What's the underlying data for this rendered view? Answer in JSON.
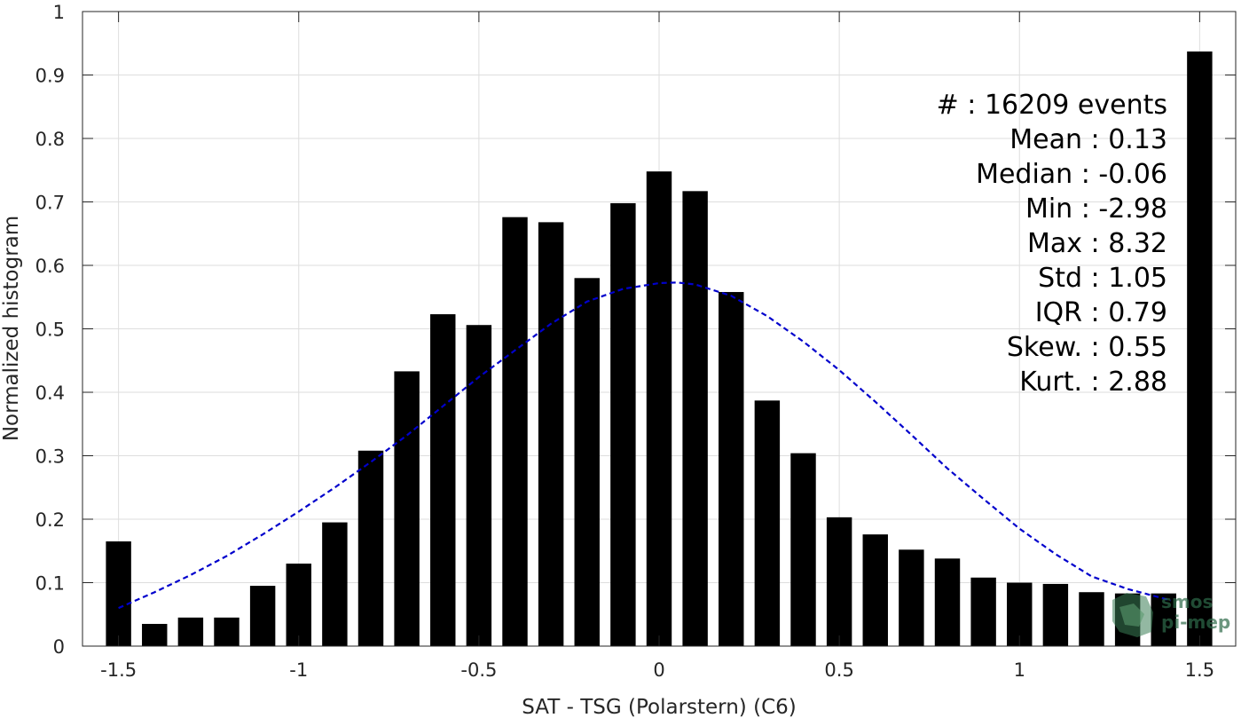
{
  "chart_data": {
    "type": "bar",
    "xlabel": "SAT - TSG (Polarstern) (C6)",
    "ylabel": "Normalized histogram",
    "xlim": [
      -1.6,
      1.6
    ],
    "ylim": [
      0,
      1
    ],
    "grid": true,
    "x_ticks": [
      -1.5,
      -1,
      -0.5,
      0,
      0.5,
      1,
      1.5
    ],
    "x_tick_labels": [
      "-1.5",
      "-1",
      "-0.5",
      "0",
      "0.5",
      "1",
      "1.5"
    ],
    "y_ticks": [
      0,
      0.1,
      0.2,
      0.3,
      0.4,
      0.5,
      0.6,
      0.7,
      0.8,
      0.9,
      1
    ],
    "y_tick_labels": [
      "0",
      "0.1",
      "0.2",
      "0.3",
      "0.4",
      "0.5",
      "0.6",
      "0.7",
      "0.8",
      "0.9",
      "1"
    ],
    "bar_width": 0.07,
    "bar_color": "#000000",
    "x": [
      -1.5,
      -1.4,
      -1.3,
      -1.2,
      -1.1,
      -1.0,
      -0.9,
      -0.8,
      -0.7,
      -0.6,
      -0.5,
      -0.4,
      -0.3,
      -0.2,
      -0.1,
      0.0,
      0.1,
      0.2,
      0.3,
      0.4,
      0.5,
      0.6,
      0.7,
      0.8,
      0.9,
      1.0,
      1.1,
      1.2,
      1.3,
      1.4,
      1.5
    ],
    "values": [
      0.165,
      0.035,
      0.045,
      0.045,
      0.095,
      0.13,
      0.195,
      0.308,
      0.433,
      0.523,
      0.506,
      0.676,
      0.668,
      0.58,
      0.698,
      0.748,
      0.717,
      0.558,
      0.387,
      0.304,
      0.203,
      0.176,
      0.152,
      0.138,
      0.108,
      0.1,
      0.098,
      0.085,
      0.083,
      0.083,
      0.937
    ],
    "fit_curve": {
      "style": "dashed",
      "color": "#0000cc",
      "x": [
        -1.5,
        -1.4,
        -1.3,
        -1.2,
        -1.1,
        -1.0,
        -0.9,
        -0.8,
        -0.7,
        -0.6,
        -0.5,
        -0.4,
        -0.3,
        -0.2,
        -0.1,
        0.0,
        0.05,
        0.1,
        0.2,
        0.3,
        0.4,
        0.5,
        0.6,
        0.7,
        0.8,
        0.9,
        1.0,
        1.1,
        1.2,
        1.3,
        1.42
      ],
      "y": [
        0.06,
        0.085,
        0.112,
        0.142,
        0.176,
        0.212,
        0.25,
        0.29,
        0.332,
        0.378,
        0.424,
        0.466,
        0.508,
        0.543,
        0.563,
        0.572,
        0.573,
        0.57,
        0.552,
        0.52,
        0.48,
        0.435,
        0.385,
        0.333,
        0.28,
        0.232,
        0.185,
        0.145,
        0.11,
        0.09,
        0.072
      ]
    },
    "annotations": [
      "#  : 16209 events",
      "Mean : 0.13",
      "Median : -0.06",
      "Min : -2.98",
      "Max : 8.32",
      "Std : 1.05",
      "IQR : 0.79",
      "Skew. : 0.55",
      "Kurt. : 2.88"
    ]
  },
  "logo": {
    "line1": "smos",
    "line2": "pi-mep"
  }
}
